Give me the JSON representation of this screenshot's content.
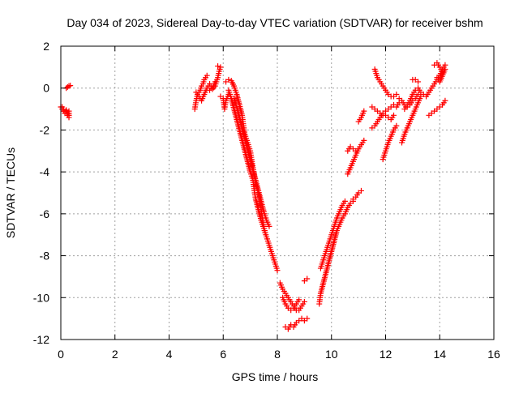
{
  "chart_data": {
    "type": "scatter",
    "title": "Day 034 of 2023, Sidereal Day-to-day VTEC variation (SDTVAR) for receiver bshm",
    "xlabel": "GPS time / hours",
    "ylabel": "SDTVAR / TECUs",
    "xlim": [
      0,
      16
    ],
    "ylim": [
      -12,
      2
    ],
    "xticks": [
      0,
      2,
      4,
      6,
      8,
      10,
      12,
      14,
      16
    ],
    "yticks": [
      -12,
      -10,
      -8,
      -6,
      -4,
      -2,
      0,
      2
    ],
    "grid": true,
    "marker": "+",
    "colors": {
      "series": "#ff0000",
      "grid": "#a0a0a0",
      "axis": "#000000"
    },
    "series": [
      {
        "segments": [
          [
            [
              0.0,
              -0.9
            ],
            [
              0.05,
              -1.0
            ],
            [
              0.1,
              -1.1
            ],
            [
              0.15,
              -1.2
            ],
            [
              0.2,
              -1.05
            ],
            [
              0.25,
              -1.3
            ],
            [
              0.3,
              -1.1
            ],
            [
              0.3,
              -1.4
            ]
          ],
          [
            [
              0.05,
              -0.9
            ],
            [
              0.1,
              -1.0
            ],
            [
              0.2,
              -1.1
            ],
            [
              0.3,
              -1.3
            ]
          ],
          [
            [
              0.2,
              0.0
            ],
            [
              0.25,
              0.05
            ],
            [
              0.3,
              0.1
            ],
            [
              0.35,
              0.12
            ]
          ],
          [
            [
              4.95,
              -1.0
            ],
            [
              5.0,
              -0.6
            ],
            [
              5.05,
              -0.3
            ],
            [
              5.1,
              -0.2
            ],
            [
              5.15,
              -0.1
            ],
            [
              5.2,
              0.1
            ],
            [
              5.25,
              0.2
            ],
            [
              5.3,
              0.4
            ],
            [
              5.35,
              0.5
            ],
            [
              5.4,
              0.6
            ]
          ],
          [
            [
              5.0,
              -0.2
            ],
            [
              5.1,
              -0.4
            ],
            [
              5.2,
              -0.6
            ],
            [
              5.3,
              -0.3
            ],
            [
              5.4,
              0.0
            ],
            [
              5.5,
              0.2
            ],
            [
              5.6,
              0.0
            ],
            [
              5.7,
              0.3
            ]
          ],
          [
            [
              5.5,
              -0.1
            ],
            [
              5.6,
              -0.05
            ],
            [
              5.7,
              0.1
            ],
            [
              5.8,
              0.5
            ],
            [
              5.85,
              0.8
            ],
            [
              5.9,
              1.0
            ],
            [
              5.8,
              1.05
            ]
          ],
          [
            [
              5.9,
              -0.4
            ],
            [
              6.0,
              -0.5
            ],
            [
              6.05,
              -1.0
            ],
            [
              6.1,
              -0.6
            ],
            [
              6.2,
              -0.3
            ]
          ],
          [
            [
              6.1,
              0.3
            ],
            [
              6.2,
              0.4
            ],
            [
              6.3,
              0.35
            ],
            [
              6.4,
              0.1
            ],
            [
              6.5,
              -0.3
            ],
            [
              6.6,
              -0.8
            ],
            [
              6.7,
              -1.3
            ],
            [
              6.75,
              -1.8
            ],
            [
              6.8,
              -2.2
            ],
            [
              6.9,
              -2.6
            ],
            [
              7.0,
              -3.0
            ],
            [
              7.05,
              -3.4
            ],
            [
              7.1,
              -3.8
            ],
            [
              7.15,
              -4.2
            ],
            [
              7.2,
              -4.6
            ],
            [
              7.3,
              -5.0
            ],
            [
              7.35,
              -5.4
            ],
            [
              7.4,
              -5.8
            ],
            [
              7.45,
              -6.2
            ],
            [
              7.5,
              -6.6
            ],
            [
              7.55,
              -6.9
            ]
          ],
          [
            [
              6.2,
              -0.1
            ],
            [
              6.3,
              -0.5
            ],
            [
              6.4,
              -1.0
            ],
            [
              6.5,
              -1.5
            ],
            [
              6.6,
              -2.0
            ],
            [
              6.7,
              -2.5
            ],
            [
              6.8,
              -3.0
            ],
            [
              6.9,
              -3.5
            ],
            [
              7.0,
              -4.0
            ],
            [
              7.1,
              -4.4
            ],
            [
              7.15,
              -4.9
            ],
            [
              7.2,
              -5.3
            ],
            [
              7.3,
              -5.8
            ],
            [
              7.4,
              -6.3
            ],
            [
              7.5,
              -6.7
            ],
            [
              7.6,
              -7.1
            ],
            [
              7.7,
              -7.5
            ],
            [
              7.8,
              -7.9
            ],
            [
              7.9,
              -8.3
            ],
            [
              8.0,
              -8.7
            ]
          ],
          [
            [
              6.4,
              -0.5
            ],
            [
              6.5,
              -0.9
            ],
            [
              6.6,
              -1.4
            ],
            [
              6.7,
              -1.9
            ],
            [
              6.8,
              -2.4
            ],
            [
              6.9,
              -2.9
            ],
            [
              7.0,
              -3.4
            ],
            [
              7.1,
              -3.9
            ],
            [
              7.2,
              -4.4
            ],
            [
              7.3,
              -4.9
            ],
            [
              7.4,
              -5.4
            ],
            [
              7.5,
              -5.9
            ],
            [
              7.6,
              -6.3
            ],
            [
              7.7,
              -6.6
            ]
          ],
          [
            [
              8.1,
              -9.3
            ],
            [
              8.2,
              -9.6
            ],
            [
              8.3,
              -9.8
            ],
            [
              8.4,
              -10.0
            ],
            [
              8.5,
              -10.2
            ],
            [
              8.6,
              -10.4
            ],
            [
              8.7,
              -10.6
            ],
            [
              8.8,
              -10.6
            ],
            [
              8.9,
              -10.4
            ],
            [
              9.0,
              -10.2
            ]
          ],
          [
            [
              8.2,
              -10.0
            ],
            [
              8.3,
              -10.3
            ],
            [
              8.4,
              -10.5
            ],
            [
              8.5,
              -10.6
            ],
            [
              8.6,
              -10.5
            ],
            [
              8.7,
              -10.3
            ],
            [
              8.8,
              -10.1
            ]
          ],
          [
            [
              9.0,
              -9.2
            ],
            [
              9.1,
              -9.1
            ]
          ],
          [
            [
              8.3,
              -11.4
            ],
            [
              8.4,
              -11.5
            ],
            [
              8.5,
              -11.3
            ],
            [
              8.6,
              -11.4
            ],
            [
              8.7,
              -11.2
            ],
            [
              8.8,
              -11.1
            ],
            [
              8.9,
              -11.0
            ],
            [
              9.0,
              -11.1
            ],
            [
              9.1,
              -11.0
            ]
          ],
          [
            [
              9.55,
              -10.3
            ],
            [
              9.6,
              -9.8
            ],
            [
              9.7,
              -9.3
            ],
            [
              9.8,
              -8.8
            ],
            [
              9.9,
              -8.3
            ],
            [
              10.0,
              -7.8
            ],
            [
              10.1,
              -7.3
            ],
            [
              10.2,
              -6.8
            ],
            [
              10.3,
              -6.5
            ],
            [
              10.4,
              -6.2
            ],
            [
              10.5,
              -6.0
            ],
            [
              10.6,
              -5.7
            ],
            [
              10.7,
              -5.5
            ],
            [
              10.8,
              -5.4
            ]
          ],
          [
            [
              9.6,
              -8.6
            ],
            [
              9.7,
              -8.2
            ],
            [
              9.8,
              -7.8
            ],
            [
              9.9,
              -7.4
            ],
            [
              10.0,
              -7.0
            ],
            [
              10.1,
              -6.6
            ],
            [
              10.2,
              -6.2
            ],
            [
              10.3,
              -5.9
            ],
            [
              10.4,
              -5.6
            ],
            [
              10.5,
              -5.4
            ]
          ],
          [
            [
              10.8,
              -5.3
            ],
            [
              10.9,
              -5.2
            ],
            [
              11.0,
              -5.0
            ],
            [
              11.1,
              -4.9
            ]
          ],
          [
            [
              10.6,
              -4.1
            ],
            [
              10.7,
              -3.8
            ],
            [
              10.8,
              -3.5
            ],
            [
              10.9,
              -3.2
            ],
            [
              11.0,
              -2.9
            ],
            [
              11.1,
              -2.7
            ],
            [
              11.2,
              -2.5
            ]
          ],
          [
            [
              10.6,
              -3.0
            ],
            [
              10.7,
              -2.8
            ],
            [
              10.8,
              -2.9
            ],
            [
              10.9,
              -3.0
            ]
          ],
          [
            [
              11.0,
              -1.6
            ],
            [
              11.1,
              -1.4
            ],
            [
              11.2,
              -1.1
            ]
          ],
          [
            [
              11.5,
              -0.9
            ],
            [
              11.6,
              -1.0
            ],
            [
              11.7,
              -1.1
            ],
            [
              11.8,
              -1.2
            ],
            [
              11.9,
              -1.3
            ],
            [
              12.0,
              -1.3
            ],
            [
              12.1,
              -1.4
            ],
            [
              12.2,
              -1.5
            ],
            [
              12.3,
              -1.3
            ]
          ],
          [
            [
              11.6,
              0.9
            ],
            [
              11.65,
              0.7
            ],
            [
              11.7,
              0.5
            ],
            [
              11.8,
              0.3
            ],
            [
              11.9,
              0.1
            ],
            [
              12.0,
              -0.1
            ],
            [
              12.1,
              -0.3
            ],
            [
              12.2,
              -0.4
            ],
            [
              12.3,
              -0.4
            ],
            [
              12.4,
              -0.3
            ]
          ],
          [
            [
              11.5,
              -1.9
            ],
            [
              11.6,
              -1.8
            ],
            [
              11.7,
              -1.6
            ],
            [
              11.8,
              -1.4
            ],
            [
              11.9,
              -1.2
            ],
            [
              12.0,
              -1.1
            ],
            [
              12.1,
              -1.0
            ],
            [
              12.2,
              -0.9
            ],
            [
              12.3,
              -0.8
            ],
            [
              12.4,
              -0.9
            ],
            [
              12.5,
              -0.7
            ]
          ],
          [
            [
              11.9,
              -3.4
            ],
            [
              12.0,
              -3.0
            ],
            [
              12.1,
              -2.6
            ],
            [
              12.2,
              -2.3
            ],
            [
              12.3,
              -2.0
            ],
            [
              12.4,
              -1.8
            ]
          ],
          [
            [
              12.5,
              -0.5
            ],
            [
              12.6,
              -0.6
            ],
            [
              12.7,
              -0.8
            ],
            [
              12.8,
              -0.9
            ],
            [
              12.9,
              -0.8
            ],
            [
              13.0,
              -0.6
            ],
            [
              13.1,
              -0.5
            ],
            [
              13.2,
              -0.3
            ]
          ],
          [
            [
              12.7,
              -1.0
            ],
            [
              12.8,
              -0.8
            ],
            [
              12.9,
              -0.6
            ],
            [
              13.0,
              -0.3
            ],
            [
              13.1,
              -0.1
            ],
            [
              13.2,
              0.0
            ],
            [
              13.3,
              -0.2
            ],
            [
              13.4,
              -0.3
            ]
          ],
          [
            [
              12.6,
              -2.6
            ],
            [
              12.7,
              -2.2
            ],
            [
              12.8,
              -1.9
            ],
            [
              12.9,
              -1.6
            ],
            [
              13.0,
              -1.3
            ],
            [
              13.1,
              -1.0
            ],
            [
              13.2,
              -0.7
            ],
            [
              13.3,
              -0.4
            ]
          ],
          [
            [
              13.0,
              0.4
            ],
            [
              13.1,
              0.4
            ],
            [
              13.2,
              0.3
            ]
          ],
          [
            [
              13.5,
              -0.4
            ],
            [
              13.6,
              -0.2
            ],
            [
              13.7,
              0.0
            ],
            [
              13.8,
              0.2
            ],
            [
              13.9,
              0.4
            ],
            [
              14.0,
              0.6
            ],
            [
              14.1,
              0.9
            ],
            [
              14.2,
              1.1
            ]
          ],
          [
            [
              13.8,
              1.1
            ],
            [
              13.9,
              1.2
            ],
            [
              14.0,
              1.0
            ],
            [
              14.1,
              0.8
            ],
            [
              14.2,
              0.9
            ],
            [
              14.0,
              0.3
            ],
            [
              13.9,
              0.5
            ]
          ],
          [
            [
              13.6,
              -1.3
            ],
            [
              13.7,
              -1.2
            ],
            [
              13.8,
              -1.1
            ],
            [
              13.9,
              -1.0
            ],
            [
              14.0,
              -0.9
            ],
            [
              14.1,
              -0.8
            ],
            [
              14.2,
              -0.6
            ]
          ]
        ]
      }
    ]
  }
}
